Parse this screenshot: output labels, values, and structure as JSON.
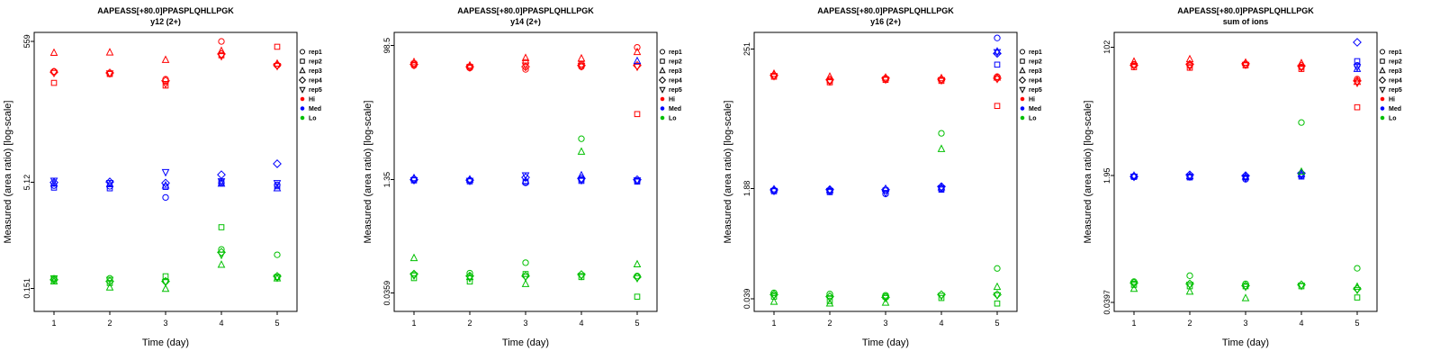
{
  "chart_config": {
    "xlabel": "Time (day)",
    "ylabel": "Measured (area ratio) [log-scale]",
    "xticks": [
      1,
      2,
      3,
      4,
      5
    ],
    "reps": [
      {
        "label": "rep1",
        "marker": "circle"
      },
      {
        "label": "rep2",
        "marker": "square"
      },
      {
        "label": "rep3",
        "marker": "triangle-up"
      },
      {
        "label": "rep4",
        "marker": "diamond"
      },
      {
        "label": "rep5",
        "marker": "triangle-down"
      }
    ],
    "levels": [
      {
        "label": "Hi",
        "color": "#FF0000"
      },
      {
        "label": "Med",
        "color": "#0000FF"
      },
      {
        "label": "Lo",
        "color": "#00C000"
      }
    ],
    "marker_outline_color": "#000000",
    "legend_position": "right-outside",
    "grid": false
  },
  "chart_data": [
    {
      "type": "scatter",
      "title": "AAPEASS[+80.0]PPASPLQHLLPGK",
      "subtitle": "y12 (2+)",
      "yticks": [
        559,
        5.12,
        0.151
      ],
      "ylim": [
        0.07,
        750
      ],
      "x": [
        1,
        2,
        3,
        4,
        5
      ],
      "series": [
        {
          "name": "Hi",
          "color": "#FF0000",
          "values_by_day": [
            [
              205,
              140,
              380,
              200,
              195
            ],
            [
              190,
              188,
              385,
              195,
              192
            ],
            [
              158,
              128,
              300,
              150,
              135
            ],
            [
              555,
              350,
              405,
              365,
              340
            ],
            [
              250,
              465,
              265,
              255,
              245
            ]
          ]
        },
        {
          "name": "Med",
          "color": "#0000FF",
          "values_by_day": [
            [
              4.6,
              4.3,
              4.9,
              5.1,
              5.4
            ],
            [
              4.5,
              4.2,
              4.8,
              5.2,
              5.0
            ],
            [
              3.1,
              4.4,
              4.6,
              5.0,
              7.2
            ],
            [
              5.0,
              5.2,
              4.9,
              6.6,
              5.3
            ],
            [
              4.7,
              4.5,
              4.2,
              9.5,
              5.0
            ]
          ]
        },
        {
          "name": "Lo",
          "color": "#00C000",
          "values_by_day": [
            [
              0.21,
              0.2,
              0.19,
              0.2,
              0.21
            ],
            [
              0.21,
              0.18,
              0.155,
              0.19,
              0.2
            ],
            [
              0.19,
              0.225,
              0.148,
              0.19,
              0.185
            ],
            [
              0.55,
              1.15,
              0.33,
              0.5,
              0.46
            ],
            [
              0.46,
              0.22,
              0.21,
              0.225,
              0.215
            ]
          ]
        }
      ]
    },
    {
      "type": "scatter",
      "title": "AAPEASS[+80.0]PPASPLQHLLPGK",
      "subtitle": "y14 (2+)",
      "yticks": [
        98.5,
        1.35,
        0.0359
      ],
      "ylim": [
        0.02,
        150
      ],
      "x": [
        1,
        2,
        3,
        4,
        5
      ],
      "series": [
        {
          "name": "Hi",
          "color": "#FF0000",
          "values_by_day": [
            [
              52,
              55,
              58,
              54,
              53
            ],
            [
              48,
              50,
              52,
              50,
              49
            ],
            [
              46,
              58,
              66,
              50,
              52
            ],
            [
              50,
              54,
              65,
              52,
              51
            ],
            [
              93,
              11,
              80,
              52,
              50
            ]
          ]
        },
        {
          "name": "Med",
          "color": "#0000FF",
          "values_by_day": [
            [
              1.38,
              1.32,
              1.42,
              1.35,
              1.33
            ],
            [
              1.32,
              1.28,
              1.36,
              1.33,
              1.3
            ],
            [
              1.22,
              1.25,
              1.3,
              1.45,
              1.55
            ],
            [
              1.35,
              1.3,
              1.55,
              1.4,
              1.33
            ],
            [
              1.3,
              1.27,
              60,
              1.35,
              1.32
            ]
          ]
        },
        {
          "name": "Lo",
          "color": "#00C000",
          "values_by_day": [
            [
              0.065,
              0.058,
              0.11,
              0.066,
              0.063
            ],
            [
              0.068,
              0.052,
              0.06,
              0.062,
              0.058
            ],
            [
              0.095,
              0.066,
              0.048,
              0.062,
              0.06
            ],
            [
              5.0,
              0.06,
              3.3,
              0.065,
              0.062
            ],
            [
              0.062,
              0.032,
              0.09,
              0.06,
              0.058
            ]
          ]
        }
      ]
    },
    {
      "type": "scatter",
      "title": "AAPEASS[+80.0]PPASPLQHLLPGK",
      "subtitle": "y16 (2+)",
      "yticks": [
        251,
        1.88,
        0.039
      ],
      "ylim": [
        0.025,
        450
      ],
      "x": [
        1,
        2,
        3,
        4,
        5
      ],
      "series": [
        {
          "name": "Hi",
          "color": "#FF0000",
          "values_by_day": [
            [
              98,
              95,
              105,
              100,
              97
            ],
            [
              82,
              78,
              95,
              85,
              80
            ],
            [
              88,
              85,
              92,
              90,
              86
            ],
            [
              85,
              82,
              90,
              87,
              84
            ],
            [
              95,
              34,
              92,
              90,
              88
            ]
          ]
        },
        {
          "name": "Med",
          "color": "#0000FF",
          "values_by_day": [
            [
              1.75,
              1.7,
              1.82,
              1.78,
              1.72
            ],
            [
              1.7,
              1.65,
              1.78,
              1.8,
              1.72
            ],
            [
              1.55,
              1.75,
              1.85,
              1.8,
              1.6
            ],
            [
              1.85,
              1.8,
              1.95,
              2.0,
              1.88
            ],
            [
              370,
              145,
              230,
              215,
              225
            ]
          ]
        },
        {
          "name": "Lo",
          "color": "#00C000",
          "values_by_day": [
            [
              0.048,
              0.042,
              0.035,
              0.045,
              0.044
            ],
            [
              0.046,
              0.036,
              0.033,
              0.042,
              0.04
            ],
            [
              0.044,
              0.042,
              0.034,
              0.041,
              0.04
            ],
            [
              13,
              0.04,
              7.5,
              0.045,
              0.043
            ],
            [
              0.113,
              0.033,
              0.059,
              0.045,
              0.044
            ]
          ]
        }
      ]
    },
    {
      "type": "scatter",
      "title": "AAPEASS[+80.0]PPASPLQHLLPGK",
      "subtitle": "sum of ions",
      "yticks": [
        102,
        1.95,
        0.0397
      ],
      "ylim": [
        0.03,
        160
      ],
      "x": [
        1,
        2,
        3,
        4,
        5
      ],
      "series": [
        {
          "name": "Hi",
          "color": "#FF0000",
          "values_by_day": [
            [
              60,
              55,
              65,
              58,
              57
            ],
            [
              58,
              54,
              70,
              60,
              56
            ],
            [
              60,
              58,
              63,
              61,
              59
            ],
            [
              55,
              52,
              62,
              57,
              54
            ],
            [
              38,
              16,
              35,
              36,
              34
            ]
          ]
        },
        {
          "name": "Med",
          "color": "#0000FF",
          "values_by_day": [
            [
              1.92,
              1.88,
              1.95,
              1.9,
              1.89
            ],
            [
              1.88,
              1.85,
              1.92,
              2.0,
              1.9
            ],
            [
              1.75,
              1.85,
              1.9,
              1.95,
              1.8
            ],
            [
              1.95,
              1.9,
              2.05,
              2.1,
              1.98
            ],
            [
              58,
              66,
              52,
              118,
              55
            ]
          ]
        },
        {
          "name": "Lo",
          "color": "#00C000",
          "values_by_day": [
            [
              0.075,
              0.068,
              0.06,
              0.072,
              0.07
            ],
            [
              0.09,
              0.065,
              0.055,
              0.07,
              0.068
            ],
            [
              0.07,
              0.065,
              0.045,
              0.066,
              0.064
            ],
            [
              10,
              0.065,
              2.2,
              0.068,
              0.066
            ],
            [
              0.113,
              0.046,
              0.064,
              0.06,
              0.058
            ]
          ]
        }
      ]
    }
  ]
}
